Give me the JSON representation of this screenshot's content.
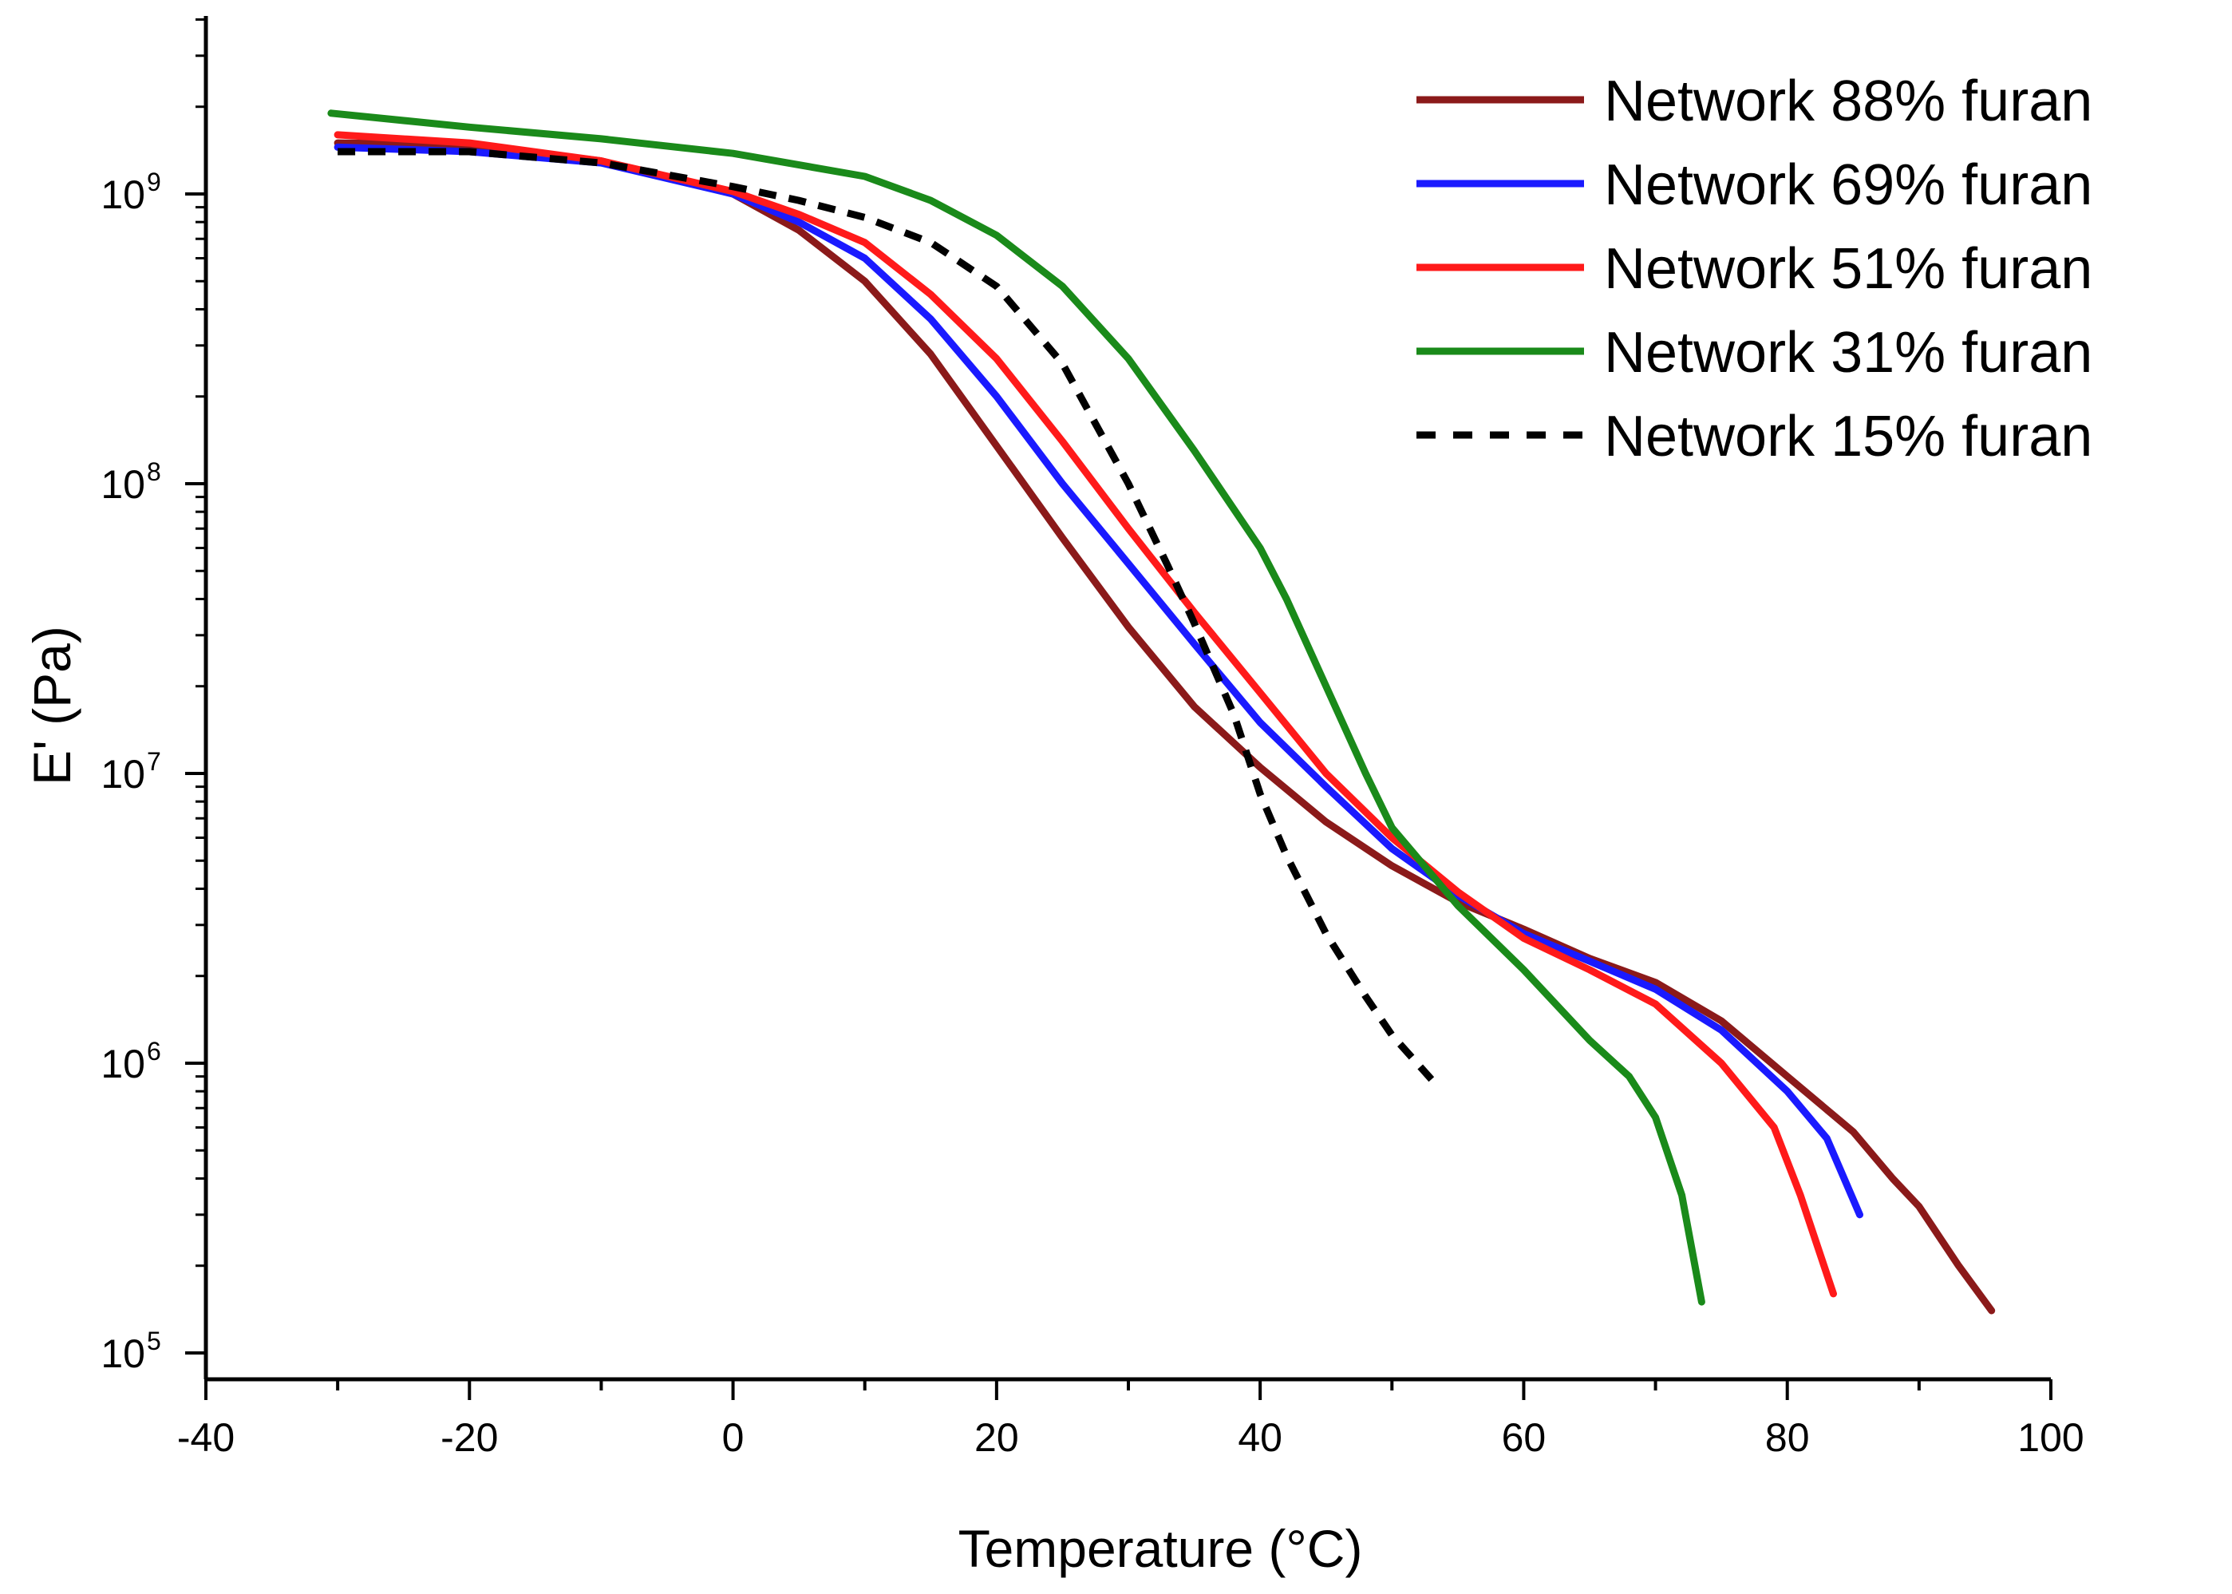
{
  "chart_data": {
    "type": "line",
    "xlabel": "Temperature (°C)",
    "ylabel": "E' (Pa)",
    "xlim": [
      -40,
      100
    ],
    "ylim": [
      100000,
      4000000000
    ],
    "yscale": "log",
    "grid": false,
    "legend_position": "top-right",
    "x_ticks": [
      "-40",
      "-20",
      "0",
      "20",
      "40",
      "60",
      "80",
      "100"
    ],
    "y_ticks": [
      {
        "base": "10",
        "exp": "5"
      },
      {
        "base": "10",
        "exp": "6"
      },
      {
        "base": "10",
        "exp": "7"
      },
      {
        "base": "10",
        "exp": "8"
      },
      {
        "base": "10",
        "exp": "9"
      }
    ],
    "series": [
      {
        "name": "Network 88% furan",
        "color": "#8b1a1a",
        "dash": "solid",
        "x": [
          -30,
          -20,
          -10,
          0,
          5,
          10,
          15,
          20,
          25,
          30,
          35,
          40,
          45,
          50,
          55,
          60,
          65,
          70,
          75,
          80,
          85,
          88,
          90,
          93,
          95.5
        ],
        "y": [
          1500000000.0,
          1480000000.0,
          1300000000.0,
          1000000000.0,
          750000000.0,
          500000000.0,
          280000000.0,
          135000000.0,
          65000000.0,
          32000000.0,
          17000000.0,
          10500000.0,
          6800000.0,
          4800000.0,
          3600000.0,
          2900000.0,
          2300000.0,
          1900000.0,
          1400000.0,
          900000.0,
          580000.0,
          400000.0,
          320000.0,
          200000.0,
          140000.0
        ]
      },
      {
        "name": "Network 69% furan",
        "color": "#1a1aff",
        "dash": "solid",
        "x": [
          -30,
          -20,
          -10,
          0,
          5,
          10,
          15,
          20,
          25,
          30,
          35,
          40,
          45,
          50,
          55,
          60,
          65,
          70,
          75,
          80,
          83,
          85.5
        ],
        "y": [
          1450000000.0,
          1400000000.0,
          1280000000.0,
          1000000000.0,
          800000000.0,
          600000000.0,
          370000000.0,
          200000000.0,
          100000000.0,
          53000000.0,
          28000000.0,
          15000000.0,
          9000000.0,
          5500000.0,
          3800000.0,
          2800000.0,
          2250000.0,
          1800000.0,
          1300000.0,
          800000.0,
          550000.0,
          300000.0
        ]
      },
      {
        "name": "Network 51% furan",
        "color": "#ff1a1a",
        "dash": "solid",
        "x": [
          -30,
          -20,
          -10,
          0,
          5,
          10,
          15,
          20,
          25,
          30,
          35,
          40,
          45,
          50,
          55,
          60,
          65,
          70,
          75,
          79,
          81,
          83.5
        ],
        "y": [
          1600000000.0,
          1500000000.0,
          1300000000.0,
          1020000000.0,
          850000000.0,
          680000000.0,
          450000000.0,
          270000000.0,
          140000000.0,
          70000000.0,
          36000000.0,
          19000000.0,
          10000000.0,
          6000000.0,
          3900000.0,
          2700000.0,
          2100000.0,
          1600000.0,
          1000000.0,
          600000.0,
          350000.0,
          160000.0
        ]
      },
      {
        "name": "Network 31% furan",
        "color": "#1a8a1a",
        "dash": "solid",
        "x": [
          -30.5,
          -20,
          -10,
          0,
          10,
          15,
          20,
          25,
          30,
          35,
          40,
          42,
          45,
          48,
          50,
          55,
          60,
          65,
          68,
          70,
          72,
          73.5
        ],
        "y": [
          1900000000.0,
          1700000000.0,
          1550000000.0,
          1380000000.0,
          1150000000.0,
          950000000.0,
          720000000.0,
          480000000.0,
          270000000.0,
          130000000.0,
          60000000.0,
          40000000.0,
          20000000.0,
          10000000.0,
          6500000.0,
          3500000.0,
          2100000.0,
          1200000.0,
          900000.0,
          650000.0,
          350000.0,
          150000.0
        ]
      },
      {
        "name": "Network 15% furan",
        "color": "#000000",
        "dash": "dashed",
        "x": [
          -30,
          -20,
          -10,
          0,
          5,
          10,
          15,
          20,
          25,
          30,
          33,
          35,
          38,
          40,
          42,
          45,
          48,
          50,
          53
        ],
        "y": [
          1400000000.0,
          1400000000.0,
          1280000000.0,
          1060000000.0,
          950000000.0,
          830000000.0,
          680000000.0,
          480000000.0,
          260000000.0,
          100000000.0,
          52000000.0,
          33000000.0,
          16000000.0,
          8500000.0,
          5200000.0,
          2800000.0,
          1700000.0,
          1250000.0,
          880000.0
        ]
      }
    ]
  }
}
